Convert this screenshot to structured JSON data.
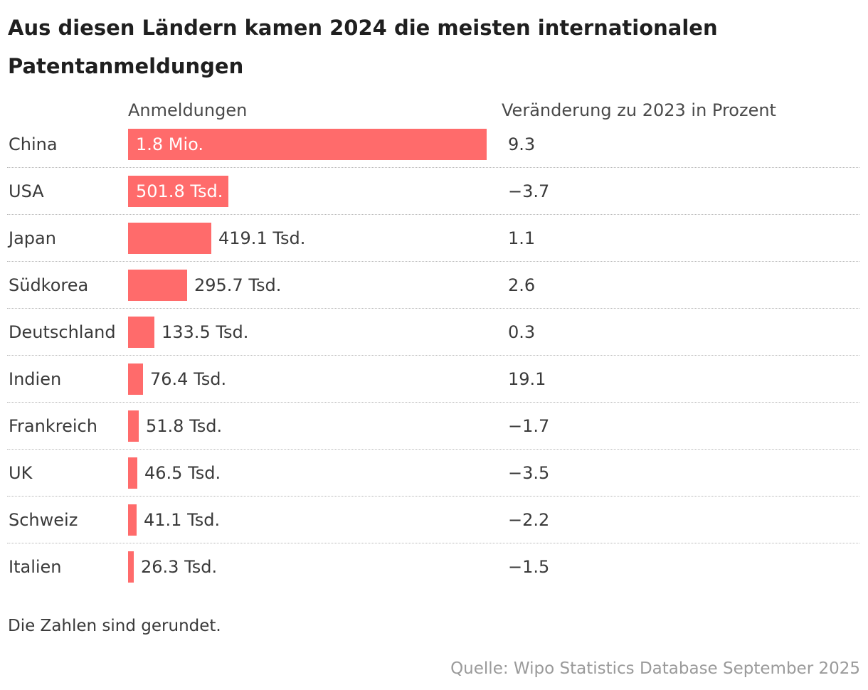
{
  "title": "Aus diesen Ländern kamen 2024 die meisten internationalen Patentanmeldungen",
  "columns": {
    "bar_header": "Anmeldungen",
    "change_header": "Veränderung zu 2023 in Prozent"
  },
  "note": "Die Zahlen sind gerundet.",
  "source": "Quelle: Wipo Statistics Database September 2025",
  "colors": {
    "bar": "#ff6b6b",
    "text": "#3a3a3a",
    "source": "#9a9a9a"
  },
  "chart_data": {
    "type": "bar",
    "orientation": "horizontal",
    "categories": [
      "China",
      "USA",
      "Japan",
      "Südkorea",
      "Deutschland",
      "Indien",
      "Frankreich",
      "UK",
      "Schweiz",
      "Italien"
    ],
    "values": [
      1800000,
      501800,
      419100,
      295700,
      133500,
      76400,
      51800,
      46500,
      41100,
      26300
    ],
    "value_labels": [
      "1.8 Mio.",
      "501.8 Tsd.",
      "419.1 Tsd.",
      "295.7 Tsd.",
      "133.5 Tsd.",
      "76.4 Tsd.",
      "51.8 Tsd.",
      "46.5 Tsd.",
      "41.1 Tsd.",
      "26.3 Tsd."
    ],
    "label_inside": [
      true,
      true,
      false,
      false,
      false,
      false,
      false,
      false,
      false,
      false
    ],
    "change_percent_labels": [
      "9.3",
      "−3.7",
      "1.1",
      "2.6",
      "0.3",
      "19.1",
      "−1.7",
      "−3.5",
      "−2.2",
      "−1.5"
    ],
    "xlim": [
      0,
      1800000
    ]
  }
}
